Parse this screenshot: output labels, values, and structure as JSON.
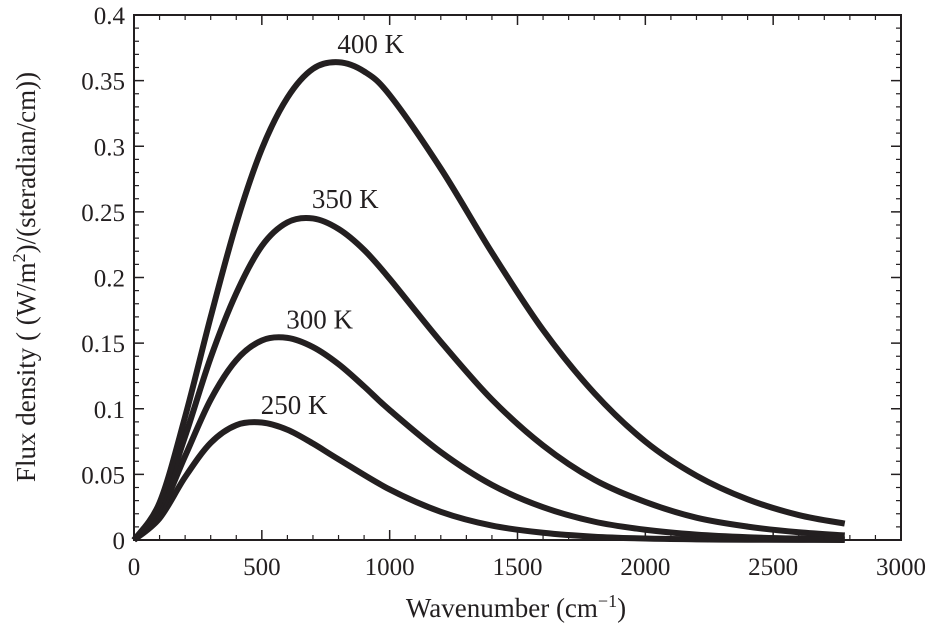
{
  "chart_data": {
    "type": "line",
    "title": "",
    "xlabel": "Wavenumber (cm",
    "xlabel_sup": "−1",
    "xlabel_end": ")",
    "ylabel": "Flux density ( (W/m",
    "ylabel_sup": "2",
    "ylabel_end": ")/(steradian/cm))",
    "xlim": [
      0,
      3000
    ],
    "ylim": [
      0,
      0.4
    ],
    "x_ticks": [
      0,
      500,
      1000,
      1500,
      2000,
      2500,
      3000
    ],
    "x_tick_labels": [
      "0",
      "500",
      "1000",
      "1500",
      "2000",
      "2500",
      "3000"
    ],
    "y_ticks": [
      0,
      0.05,
      0.1,
      0.15,
      0.2,
      0.25,
      0.3,
      0.35,
      0.4
    ],
    "y_tick_labels": [
      "0",
      "0.05",
      "0.1",
      "0.15",
      "0.2",
      "0.25",
      "0.3",
      "0.35",
      "0.4"
    ],
    "grid": false,
    "line_color": "#231f20",
    "series": [
      {
        "name": "250K",
        "label": "250 K",
        "x": [
          0,
          100,
          200,
          300,
          400,
          500,
          600,
          700,
          800,
          1000,
          1200,
          1400,
          1600,
          1800,
          2000,
          2200,
          2400,
          2600,
          2780
        ],
        "y": [
          0,
          0.0165,
          0.048,
          0.074,
          0.0875,
          0.0895,
          0.084,
          0.0735,
          0.0615,
          0.0385,
          0.0215,
          0.011,
          0.0055,
          0.0025,
          0.0011,
          0.0005,
          0.0002,
          0.0001,
          3e-05
        ]
      },
      {
        "name": "300K",
        "label": "300 K",
        "x": [
          0,
          100,
          200,
          300,
          400,
          500,
          600,
          700,
          800,
          900,
          1000,
          1200,
          1400,
          1600,
          1800,
          2000,
          2200,
          2400,
          2600,
          2780
        ],
        "y": [
          0,
          0.0205,
          0.064,
          0.107,
          0.137,
          0.152,
          0.154,
          0.147,
          0.134,
          0.117,
          0.099,
          0.067,
          0.042,
          0.025,
          0.014,
          0.0078,
          0.0041,
          0.0021,
          0.0011,
          0.0006
        ]
      },
      {
        "name": "350K",
        "label": "350 K",
        "x": [
          0,
          100,
          200,
          300,
          400,
          500,
          600,
          700,
          800,
          900,
          1000,
          1200,
          1400,
          1600,
          1800,
          2000,
          2200,
          2400,
          2600,
          2780
        ],
        "y": [
          0,
          0.0245,
          0.079,
          0.139,
          0.188,
          0.224,
          0.242,
          0.245,
          0.237,
          0.221,
          0.199,
          0.151,
          0.107,
          0.072,
          0.046,
          0.029,
          0.017,
          0.0102,
          0.0059,
          0.0035
        ]
      },
      {
        "name": "400K",
        "label": "400 K",
        "x": [
          0,
          100,
          200,
          300,
          400,
          500,
          600,
          700,
          800,
          900,
          1000,
          1200,
          1400,
          1600,
          1800,
          2000,
          2200,
          2400,
          2600,
          2780
        ],
        "y": [
          0,
          0.0285,
          0.094,
          0.17,
          0.241,
          0.298,
          0.337,
          0.359,
          0.364,
          0.357,
          0.339,
          0.283,
          0.219,
          0.16,
          0.112,
          0.075,
          0.049,
          0.031,
          0.019,
          0.0125
        ]
      }
    ],
    "annotations": [
      {
        "text": "400 K",
        "x": 780,
        "y": 0.368,
        "series": "400K"
      },
      {
        "text": "350 K",
        "x": 680,
        "y": 0.25,
        "series": "350K"
      },
      {
        "text": "300 K",
        "x": 580,
        "y": 0.158,
        "series": "300K"
      },
      {
        "text": "250 K",
        "x": 480,
        "y": 0.093,
        "series": "250K"
      }
    ]
  }
}
